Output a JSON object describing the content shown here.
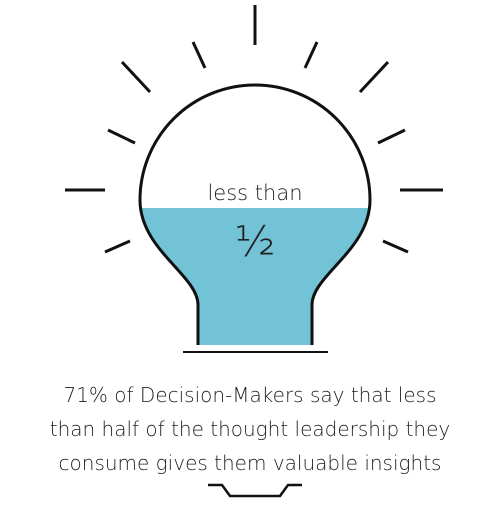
{
  "bulb": {
    "label": "less than",
    "fraction": "½"
  },
  "caption": {
    "lines": [
      "71% of Decision-Makers say that less",
      "than half of the thought leadership they",
      "consume gives them valuable insights"
    ]
  }
}
